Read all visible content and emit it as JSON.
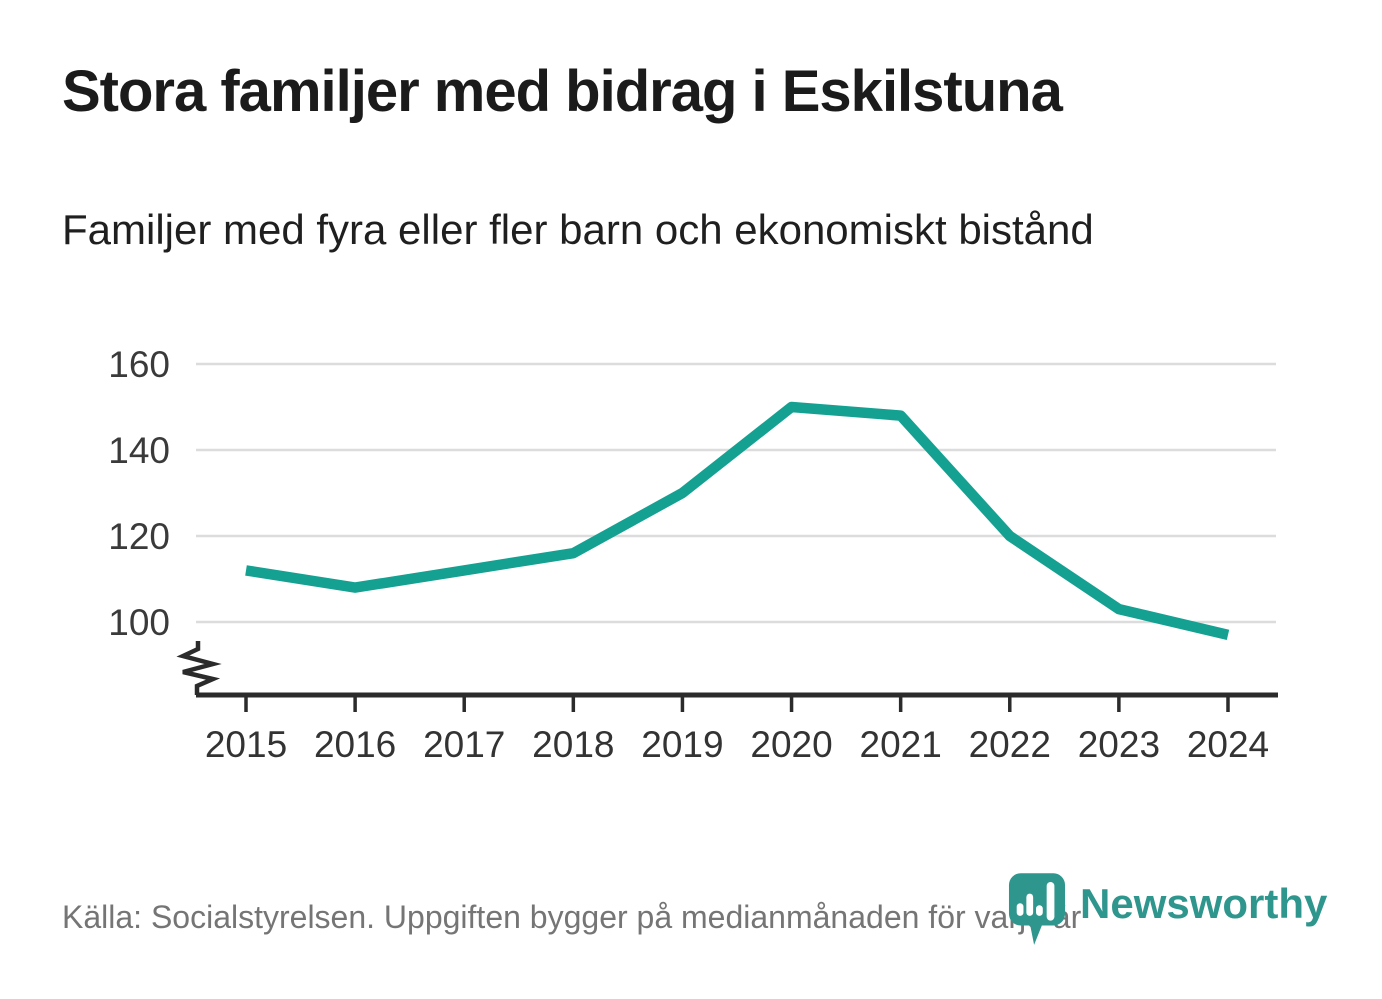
{
  "header": {
    "title": "Stora familjer med bidrag i Eskilstuna",
    "subtitle": "Familjer med fyra eller fler barn och ekonomiskt bistånd"
  },
  "chart_data": {
    "type": "line",
    "title": "Stora familjer med bidrag i Eskilstuna",
    "subtitle": "Familjer med fyra eller fler barn och ekonomiskt bistånd",
    "categories": [
      "2015",
      "2016",
      "2017",
      "2018",
      "2019",
      "2020",
      "2021",
      "2022",
      "2023",
      "2024"
    ],
    "values": [
      112,
      108,
      112,
      116,
      130,
      150,
      148,
      120,
      103,
      97
    ],
    "xlabel": "",
    "ylabel": "",
    "yticks": [
      100,
      120,
      140,
      160
    ],
    "ylim": [
      88,
      166
    ],
    "axis_break": true,
    "grid": "horizontal",
    "legend": "none",
    "line_color": "#14a192",
    "gridline_color": "#dcdcdc",
    "axis_color": "#2b2b2b",
    "tick_label_color": "#3a3a3a"
  },
  "footer": {
    "source_text": "Källa: Socialstyrelsen. Uppgiften bygger på medianmånaden för varje år",
    "brand_name": "Newsworthy",
    "brand_color": "#2f968e",
    "logo_icon": "bar-chart-pin-icon"
  }
}
